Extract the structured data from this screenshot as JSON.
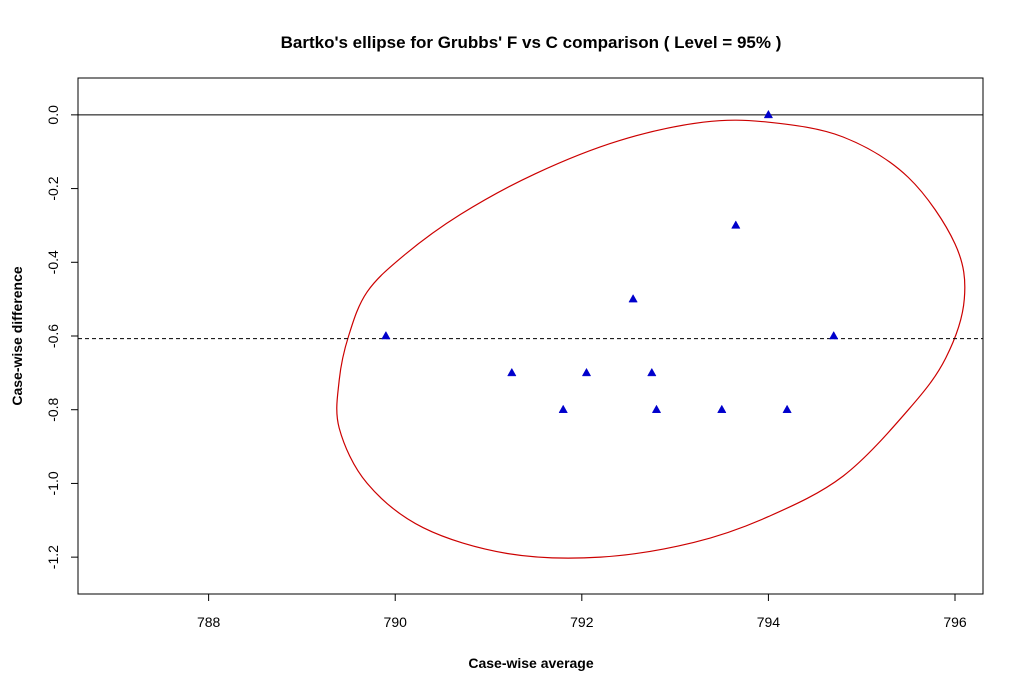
{
  "chart_data": {
    "type": "scatter",
    "title": "Bartko's ellipse for Grubbs' F vs C comparison ( Level = 95% )",
    "xlabel": "Case-wise average",
    "ylabel": "Case-wise difference",
    "xlim": [
      786.6,
      796.3
    ],
    "ylim": [
      -1.3,
      0.1
    ],
    "x_ticks": [
      788,
      790,
      792,
      794,
      796
    ],
    "x_tick_labels": [
      "788",
      "790",
      "792",
      "794",
      "796"
    ],
    "y_ticks": [
      0.0,
      -0.2,
      -0.4,
      -0.6,
      -0.8,
      -1.0,
      -1.2
    ],
    "y_tick_labels": [
      "0.0",
      "-0.2",
      "-0.4",
      "-0.6",
      "-0.8",
      "-1.0",
      "-1.2"
    ],
    "grid": false,
    "reference_lines": [
      {
        "type": "horizontal",
        "y": 0.0,
        "style": "solid",
        "color": "#000000"
      },
      {
        "type": "horizontal",
        "y": -0.607,
        "style": "dashed",
        "color": "#000000"
      }
    ],
    "series": [
      {
        "marker": "triangle",
        "color": "#0000cc",
        "points": [
          {
            "x": 789.9,
            "y": -0.6
          },
          {
            "x": 791.25,
            "y": -0.7
          },
          {
            "x": 791.8,
            "y": -0.8
          },
          {
            "x": 792.05,
            "y": -0.7
          },
          {
            "x": 792.55,
            "y": -0.5
          },
          {
            "x": 792.75,
            "y": -0.7
          },
          {
            "x": 792.8,
            "y": -0.8
          },
          {
            "x": 793.5,
            "y": -0.8
          },
          {
            "x": 793.65,
            "y": -0.3
          },
          {
            "x": 794.0,
            "y": 0.0
          },
          {
            "x": 794.2,
            "y": -0.8
          },
          {
            "x": 794.7,
            "y": -0.6
          }
        ]
      }
    ],
    "ellipse": {
      "color": "#cc0000",
      "center_x": 792.8,
      "center_y": -0.607,
      "level": "95%",
      "outline": [
        {
          "x": 789.5,
          "y": -0.6
        },
        {
          "x": 789.7,
          "y": -0.48
        },
        {
          "x": 790.1,
          "y": -0.38
        },
        {
          "x": 790.7,
          "y": -0.27
        },
        {
          "x": 791.5,
          "y": -0.16
        },
        {
          "x": 792.4,
          "y": -0.07
        },
        {
          "x": 793.3,
          "y": -0.02
        },
        {
          "x": 794.0,
          "y": -0.02
        },
        {
          "x": 794.8,
          "y": -0.06
        },
        {
          "x": 795.5,
          "y": -0.17
        },
        {
          "x": 796.0,
          "y": -0.35
        },
        {
          "x": 796.1,
          "y": -0.5
        },
        {
          "x": 795.9,
          "y": -0.66
        },
        {
          "x": 795.5,
          "y": -0.8
        },
        {
          "x": 794.8,
          "y": -0.98
        },
        {
          "x": 794.0,
          "y": -1.09
        },
        {
          "x": 793.2,
          "y": -1.16
        },
        {
          "x": 792.2,
          "y": -1.2
        },
        {
          "x": 791.2,
          "y": -1.19
        },
        {
          "x": 790.3,
          "y": -1.12
        },
        {
          "x": 789.7,
          "y": -1.0
        },
        {
          "x": 789.4,
          "y": -0.85
        },
        {
          "x": 789.4,
          "y": -0.72
        }
      ]
    }
  }
}
